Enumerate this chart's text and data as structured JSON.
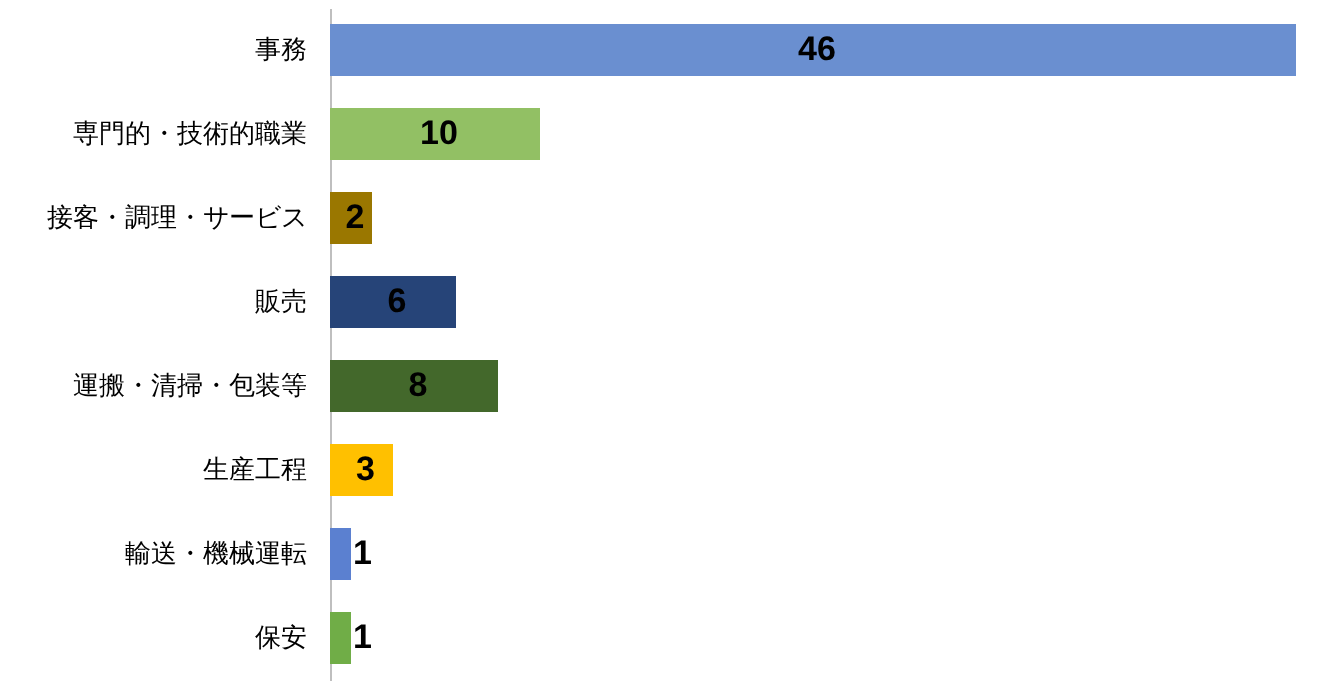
{
  "chart_data": {
    "type": "bar",
    "orientation": "horizontal",
    "data_labels": true,
    "categories": [
      "事務",
      "専門的・技術的職業",
      "接客・調理・サービス",
      "販売",
      "運搬・清掃・包装等",
      "生産工程",
      "輸送・機械運転",
      "保安"
    ],
    "values": [
      46,
      10,
      2,
      6,
      8,
      3,
      1,
      1
    ],
    "colors": [
      "#6a8fd0",
      "#92c064",
      "#9a7700",
      "#264478",
      "#43682b",
      "#ffc000",
      "#5b80d0",
      "#70ad47"
    ]
  }
}
